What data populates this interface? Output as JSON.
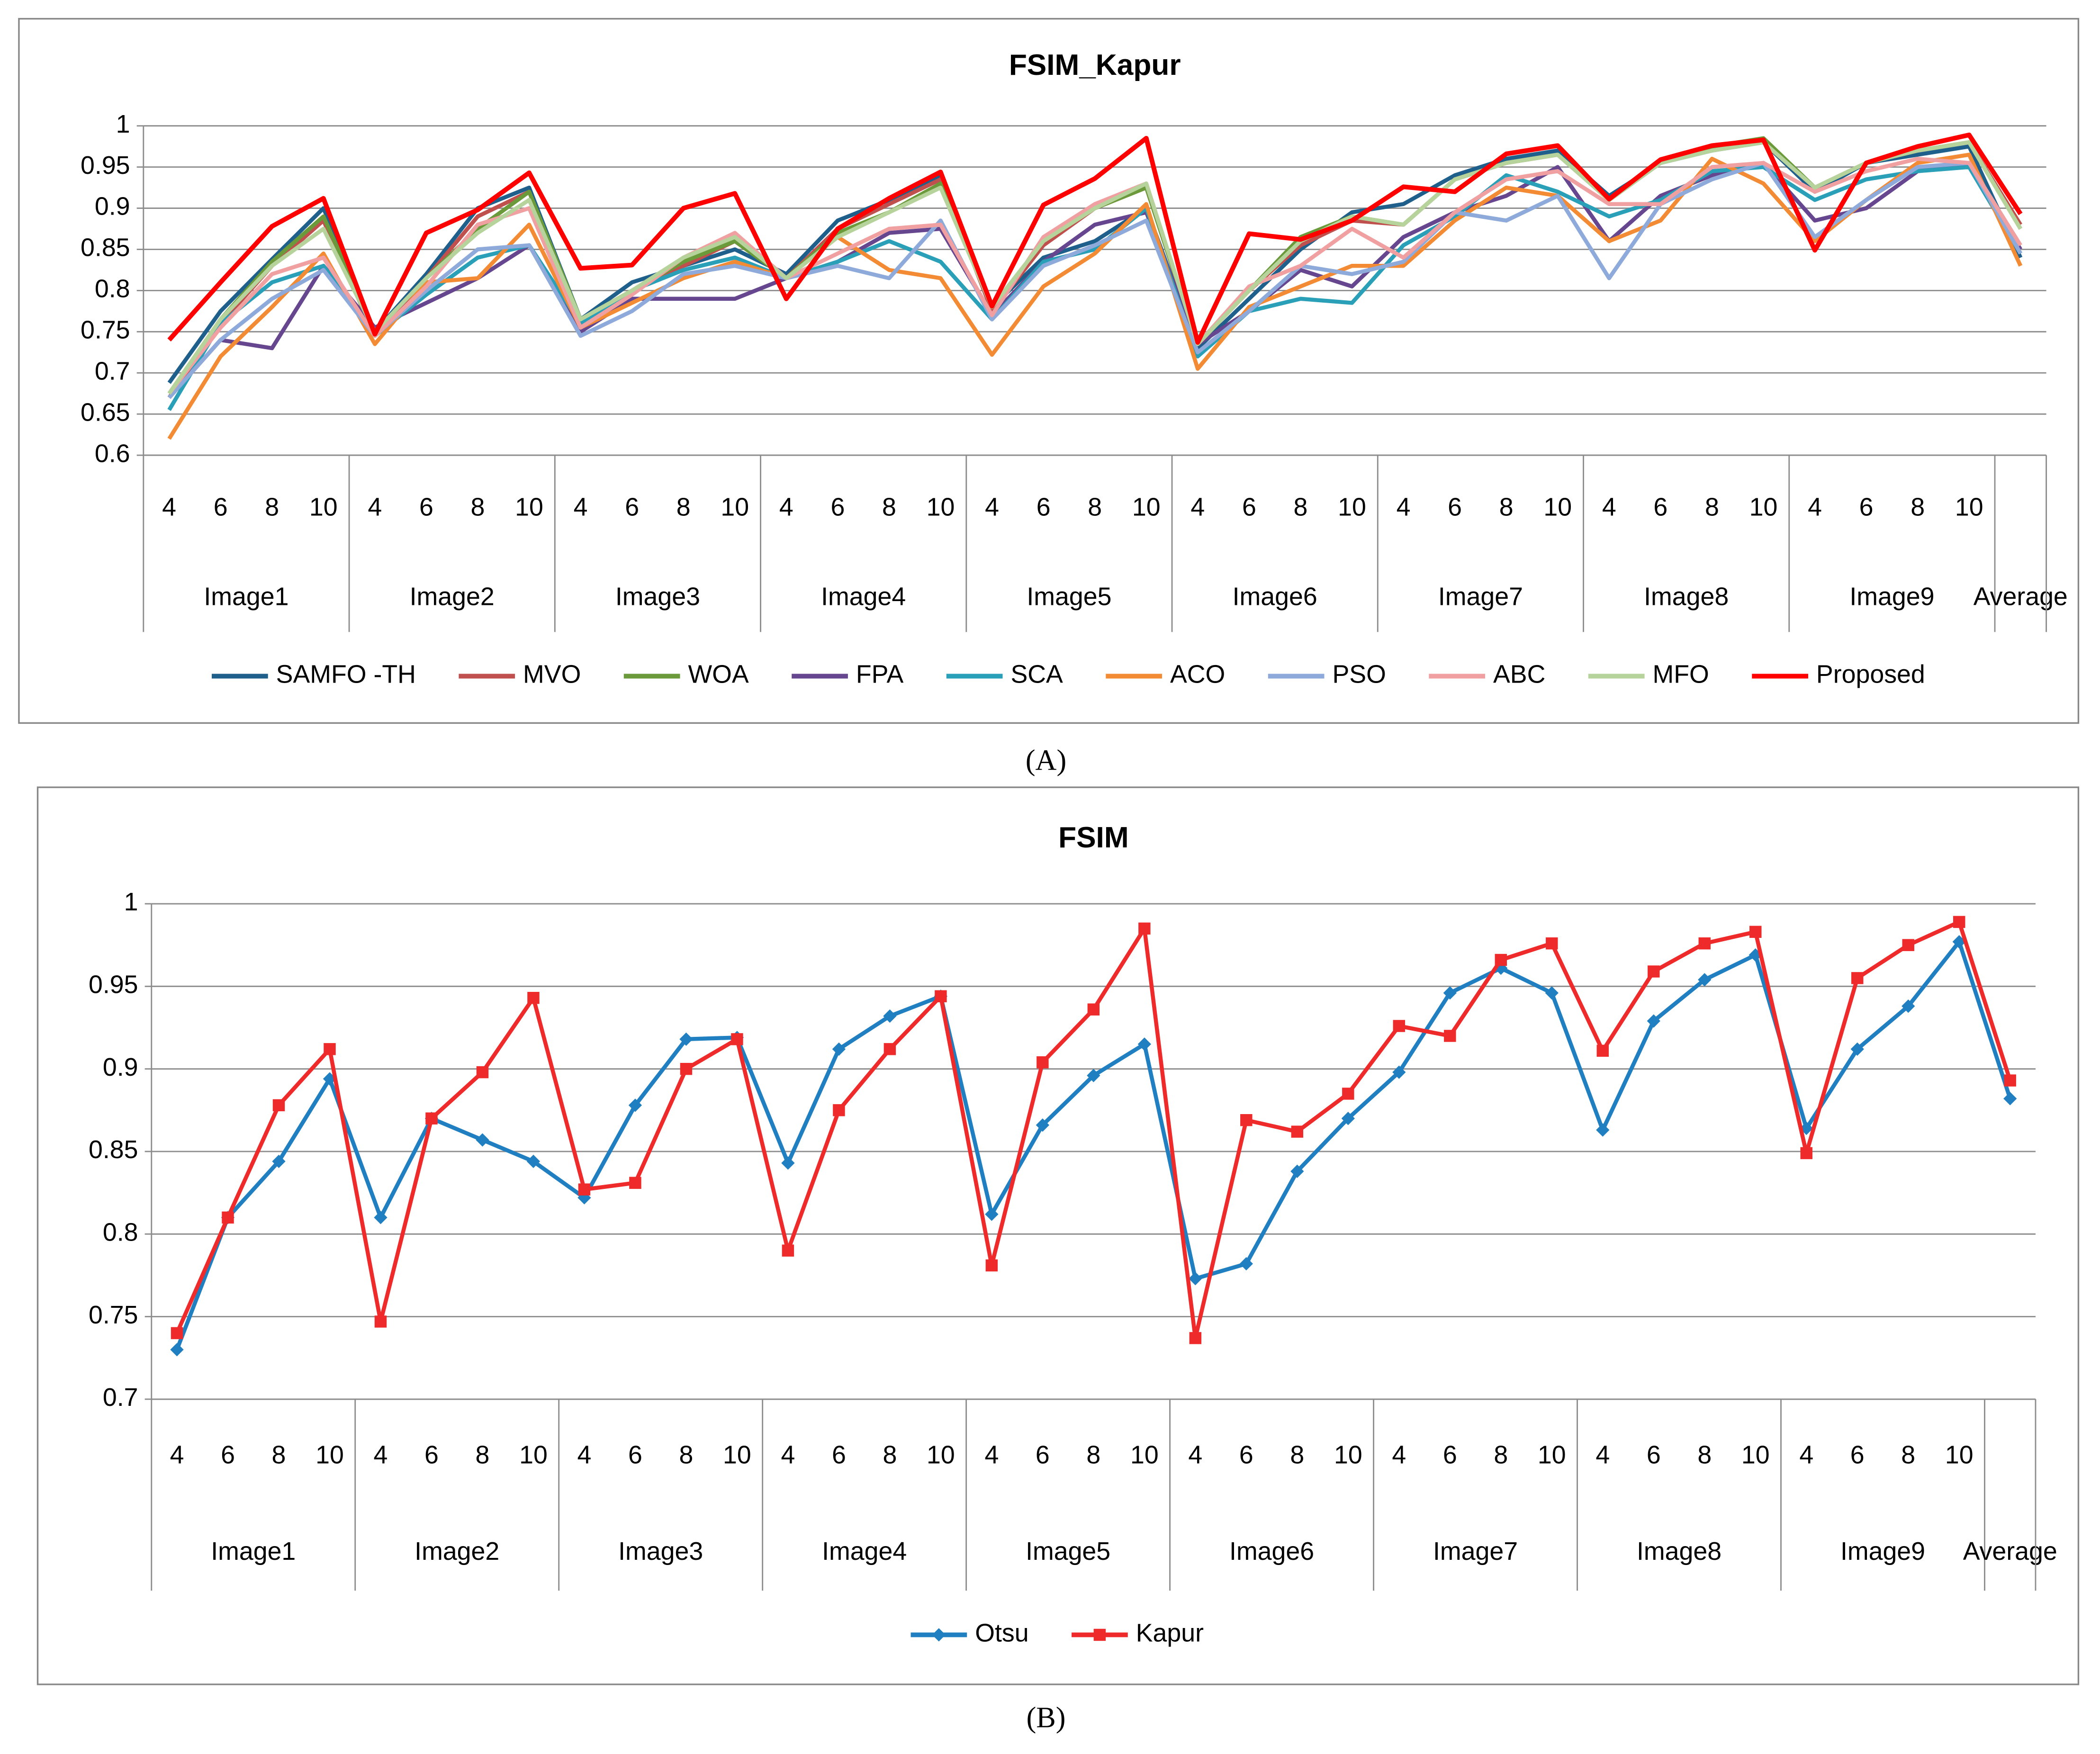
{
  "chart_data": [
    {
      "type": "line",
      "title": "FSIM_Kapur",
      "caption": "(A)",
      "categories": [
        "4",
        "6",
        "8",
        "10",
        "4",
        "6",
        "8",
        "10",
        "4",
        "6",
        "8",
        "10",
        "4",
        "6",
        "8",
        "10",
        "4",
        "6",
        "8",
        "10",
        "4",
        "6",
        "8",
        "10",
        "4",
        "6",
        "8",
        "10",
        "4",
        "6",
        "8",
        "10",
        "4",
        "6",
        "8",
        "10",
        null
      ],
      "groups": [
        "Image1",
        "Image2",
        "Image3",
        "Image4",
        "Image5",
        "Image6",
        "Image7",
        "Image8",
        "Image9",
        "Average"
      ],
      "ylim": [
        0.6,
        1
      ],
      "yticks": [
        0.6,
        0.65,
        0.7,
        0.75,
        0.8,
        0.85,
        0.9,
        0.95,
        1
      ],
      "grid": true,
      "legend": "bottom",
      "marker": "none",
      "series": [
        {
          "name": "SAMFO -TH",
          "color": "#1f5f8b",
          "values": [
            0.688,
            0.775,
            0.838,
            0.9,
            0.75,
            0.82,
            0.9,
            0.925,
            0.765,
            0.81,
            0.83,
            0.85,
            0.82,
            0.885,
            0.91,
            0.94,
            0.78,
            0.84,
            0.86,
            0.9,
            0.73,
            0.79,
            0.85,
            0.895,
            0.905,
            0.94,
            0.96,
            0.97,
            0.915,
            0.955,
            0.97,
            0.98,
            0.92,
            0.955,
            0.965,
            0.975,
            0.84
          ]
        },
        {
          "name": "MVO",
          "color": "#c0504d",
          "values": [
            0.67,
            0.76,
            0.83,
            0.885,
            0.745,
            0.815,
            0.89,
            0.92,
            0.76,
            0.8,
            0.83,
            0.86,
            0.815,
            0.875,
            0.905,
            0.935,
            0.775,
            0.855,
            0.9,
            0.925,
            0.735,
            0.8,
            0.855,
            0.885,
            0.88,
            0.935,
            0.955,
            0.965,
            0.91,
            0.955,
            0.975,
            0.98,
            0.925,
            0.955,
            0.97,
            0.98,
            0.88
          ]
        },
        {
          "name": "WOA",
          "color": "#6a9a3a",
          "values": [
            0.675,
            0.765,
            0.835,
            0.89,
            0.75,
            0.815,
            0.875,
            0.92,
            0.765,
            0.8,
            0.835,
            0.86,
            0.815,
            0.87,
            0.895,
            0.93,
            0.78,
            0.86,
            0.9,
            0.925,
            0.735,
            0.8,
            0.865,
            0.89,
            0.88,
            0.935,
            0.955,
            0.965,
            0.91,
            0.955,
            0.975,
            0.985,
            0.925,
            0.955,
            0.97,
            0.98,
            0.875
          ]
        },
        {
          "name": "FPA",
          "color": "#65468f",
          "values": [
            0.67,
            0.74,
            0.73,
            0.83,
            0.755,
            0.785,
            0.815,
            0.855,
            0.75,
            0.79,
            0.79,
            0.79,
            0.815,
            0.835,
            0.87,
            0.875,
            0.77,
            0.835,
            0.88,
            0.895,
            0.735,
            0.775,
            0.825,
            0.805,
            0.865,
            0.895,
            0.915,
            0.95,
            0.86,
            0.915,
            0.94,
            0.955,
            0.885,
            0.9,
            0.945,
            0.955,
            0.85
          ]
        },
        {
          "name": "SCA",
          "color": "#2a9fb8",
          "values": [
            0.655,
            0.76,
            0.81,
            0.83,
            0.745,
            0.795,
            0.84,
            0.855,
            0.76,
            0.8,
            0.825,
            0.84,
            0.815,
            0.835,
            0.86,
            0.835,
            0.765,
            0.835,
            0.85,
            0.9,
            0.72,
            0.775,
            0.79,
            0.785,
            0.855,
            0.89,
            0.94,
            0.92,
            0.89,
            0.91,
            0.945,
            0.95,
            0.91,
            0.935,
            0.945,
            0.95,
            0.845
          ]
        },
        {
          "name": "ACO",
          "color": "#f38b35",
          "values": [
            0.62,
            0.72,
            0.78,
            0.845,
            0.735,
            0.81,
            0.815,
            0.88,
            0.755,
            0.785,
            0.815,
            0.835,
            0.815,
            0.865,
            0.825,
            0.815,
            0.722,
            0.805,
            0.845,
            0.905,
            0.705,
            0.78,
            0.805,
            0.83,
            0.83,
            0.885,
            0.925,
            0.915,
            0.86,
            0.885,
            0.96,
            0.93,
            0.86,
            0.91,
            0.955,
            0.965,
            0.83
          ]
        },
        {
          "name": "PSO",
          "color": "#8eaadb",
          "values": [
            0.67,
            0.74,
            0.79,
            0.825,
            0.745,
            0.8,
            0.85,
            0.855,
            0.745,
            0.775,
            0.82,
            0.83,
            0.815,
            0.83,
            0.815,
            0.885,
            0.765,
            0.83,
            0.855,
            0.885,
            0.725,
            0.775,
            0.83,
            0.82,
            0.835,
            0.895,
            0.885,
            0.915,
            0.815,
            0.905,
            0.935,
            0.955,
            0.865,
            0.91,
            0.95,
            0.955,
            0.845
          ]
        },
        {
          "name": "ABC",
          "color": "#f0a0a0",
          "values": [
            0.675,
            0.755,
            0.82,
            0.84,
            0.745,
            0.805,
            0.88,
            0.9,
            0.755,
            0.795,
            0.84,
            0.87,
            0.815,
            0.845,
            0.875,
            0.88,
            0.77,
            0.865,
            0.905,
            0.93,
            0.735,
            0.805,
            0.83,
            0.875,
            0.84,
            0.895,
            0.935,
            0.945,
            0.905,
            0.905,
            0.95,
            0.955,
            0.92,
            0.945,
            0.96,
            0.955,
            0.855
          ]
        },
        {
          "name": "MFO",
          "color": "#b5d39a",
          "values": [
            0.675,
            0.765,
            0.83,
            0.875,
            0.75,
            0.815,
            0.87,
            0.91,
            0.765,
            0.8,
            0.84,
            0.865,
            0.815,
            0.865,
            0.895,
            0.925,
            0.78,
            0.86,
            0.9,
            0.93,
            0.735,
            0.8,
            0.86,
            0.89,
            0.88,
            0.935,
            0.955,
            0.965,
            0.91,
            0.955,
            0.97,
            0.98,
            0.925,
            0.955,
            0.97,
            0.98,
            0.875
          ]
        },
        {
          "name": "Proposed",
          "color": "#ff0000",
          "values": [
            0.74,
            0.81,
            0.878,
            0.912,
            0.747,
            0.87,
            0.898,
            0.943,
            0.827,
            0.831,
            0.9,
            0.918,
            0.79,
            0.875,
            0.912,
            0.944,
            0.781,
            0.904,
            0.936,
            0.985,
            0.737,
            0.869,
            0.862,
            0.885,
            0.926,
            0.92,
            0.966,
            0.976,
            0.911,
            0.959,
            0.976,
            0.983,
            0.849,
            0.955,
            0.975,
            0.989,
            0.893
          ]
        }
      ]
    },
    {
      "type": "line",
      "title": "FSIM",
      "caption": "(B)",
      "categories": [
        "4",
        "6",
        "8",
        "10",
        "4",
        "6",
        "8",
        "10",
        "4",
        "6",
        "8",
        "10",
        "4",
        "6",
        "8",
        "10",
        "4",
        "6",
        "8",
        "10",
        "4",
        "6",
        "8",
        "10",
        "4",
        "6",
        "8",
        "10",
        "4",
        "6",
        "8",
        "10",
        "4",
        "6",
        "8",
        "10",
        null
      ],
      "groups": [
        "Image1",
        "Image2",
        "Image3",
        "Image4",
        "Image5",
        "Image6",
        "Image7",
        "Image8",
        "Image9",
        "Average"
      ],
      "ylim": [
        0.7,
        1
      ],
      "yticks": [
        0.7,
        0.75,
        0.8,
        0.85,
        0.9,
        0.95,
        1
      ],
      "grid": true,
      "legend": "bottom",
      "marker": "shape",
      "series": [
        {
          "name": "Otsu",
          "color": "#1f7fc0",
          "marker_shape": "diamond",
          "values": [
            0.73,
            0.81,
            0.844,
            0.894,
            0.81,
            0.87,
            0.857,
            0.844,
            0.822,
            0.878,
            0.918,
            0.919,
            0.843,
            0.912,
            0.932,
            0.944,
            0.812,
            0.866,
            0.896,
            0.915,
            0.773,
            0.782,
            0.838,
            0.87,
            0.898,
            0.946,
            0.961,
            0.946,
            0.863,
            0.929,
            0.954,
            0.969,
            0.864,
            0.912,
            0.938,
            0.977,
            0.882
          ]
        },
        {
          "name": "Kapur",
          "color": "#ee2a2a",
          "marker_shape": "square",
          "values": [
            0.74,
            0.81,
            0.878,
            0.912,
            0.747,
            0.87,
            0.898,
            0.943,
            0.827,
            0.831,
            0.9,
            0.918,
            0.79,
            0.875,
            0.912,
            0.944,
            0.781,
            0.904,
            0.936,
            0.985,
            0.737,
            0.869,
            0.862,
            0.885,
            0.926,
            0.92,
            0.966,
            0.976,
            0.911,
            0.959,
            0.976,
            0.983,
            0.849,
            0.955,
            0.975,
            0.989,
            0.893
          ]
        }
      ]
    }
  ]
}
